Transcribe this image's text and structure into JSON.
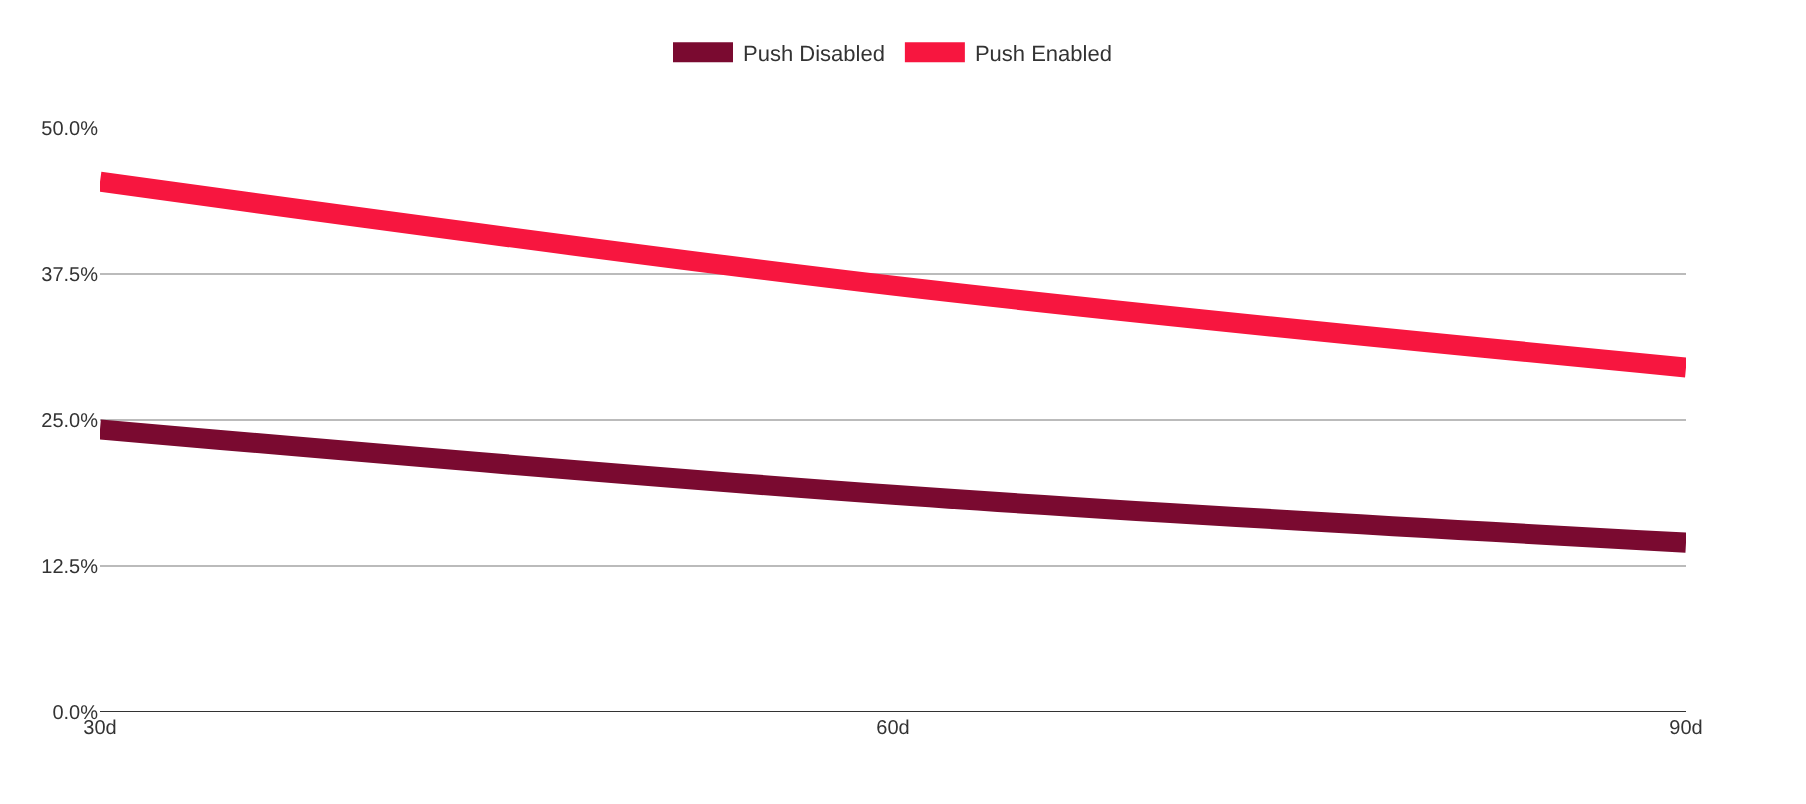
{
  "chart_data": {
    "type": "line",
    "categories": [
      "30d",
      "60d",
      "90d"
    ],
    "series": [
      {
        "name": "Push Disabled",
        "color": "#7a0a30",
        "values": [
          24.2,
          18.6,
          14.5
        ]
      },
      {
        "name": "Push Enabled",
        "color": "#f7163f",
        "values": [
          45.4,
          36.5,
          29.5
        ]
      }
    ],
    "ylim": [
      0,
      50
    ],
    "yticks": [
      {
        "value": 0,
        "label": "0.0%"
      },
      {
        "value": 12.5,
        "label": "12.5%"
      },
      {
        "value": 25,
        "label": "25.0%"
      },
      {
        "value": 37.5,
        "label": "37.5%"
      },
      {
        "value": 50,
        "label": "50.0%"
      }
    ],
    "grid": "y",
    "legend": "top",
    "marker": "none",
    "line_style": "solid"
  }
}
